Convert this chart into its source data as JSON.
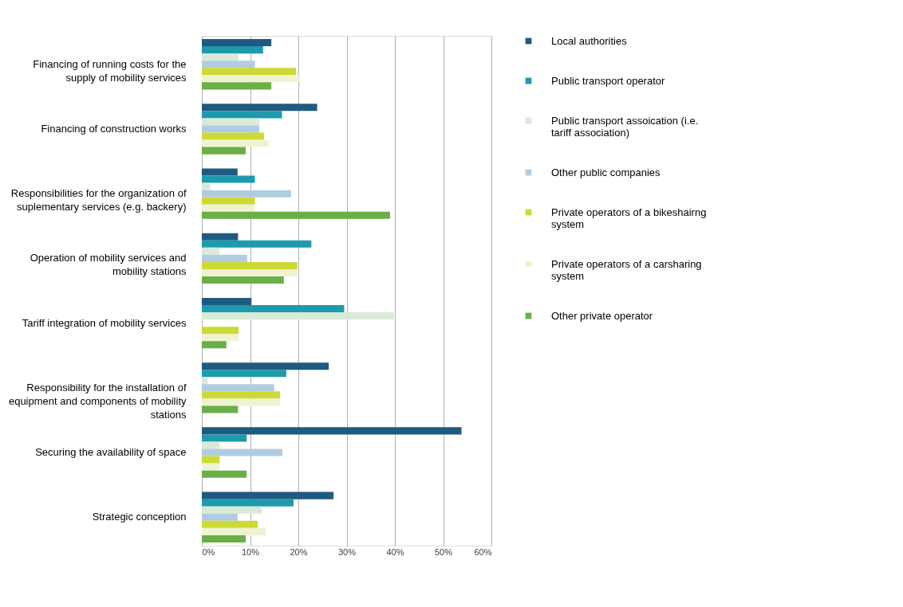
{
  "chart_data": {
    "type": "bar",
    "orientation": "horizontal",
    "categories": [
      "Financing of running costs for the supply of mobility services",
      "Financing of construction works",
      "Responsibilities for the organization of suplementary services (e.g. backery)",
      "Operation of mobility services and mobility stations",
      "Tariff integration of mobility services",
      "Responsibility for the installation of equipment and components of mobility stations",
      "Securing the availability of space",
      "Strategic conception"
    ],
    "series": [
      {
        "name": "Local authorities",
        "color": "#1f5a80",
        "values": [
          14.4,
          23.9,
          7.4,
          7.5,
          10.3,
          26.3,
          53.8,
          27.3
        ]
      },
      {
        "name": "Public transport operator",
        "color": "#1e9aad",
        "values": [
          12.7,
          16.6,
          11.0,
          22.7,
          29.5,
          17.5,
          9.3,
          19.0
        ]
      },
      {
        "name": "Public transport assoication (i.e. tariff association)",
        "color": "#d9ead7",
        "values": [
          7.6,
          11.9,
          1.8,
          3.7,
          39.8,
          1.2,
          3.7,
          12.4
        ]
      },
      {
        "name": "Other public companies",
        "color": "#b0cde0",
        "values": [
          11.0,
          11.9,
          18.5,
          9.4,
          null,
          15.0,
          16.7,
          7.4
        ]
      },
      {
        "name": "Private operators of a bikeshairng system",
        "color": "#cdd935",
        "values": [
          19.5,
          12.9,
          11.0,
          19.8,
          7.6,
          16.2,
          3.7,
          11.6
        ]
      },
      {
        "name": "Private operators of a carsharing system",
        "color": "#f0f3cf",
        "values": [
          20.3,
          13.8,
          11.0,
          19.8,
          7.6,
          16.2,
          3.7,
          13.3
        ]
      },
      {
        "name": "Other private operator",
        "color": "#6aaf47",
        "values": [
          14.4,
          9.1,
          39.0,
          17.0,
          5.1,
          7.5,
          9.3,
          9.1
        ]
      }
    ],
    "xlim": [
      0,
      60
    ],
    "xticks": [
      {
        "value": 0,
        "label": "0%"
      },
      {
        "value": 10,
        "label": "10%"
      },
      {
        "value": 20,
        "label": "20%"
      },
      {
        "value": 30,
        "label": "30%"
      },
      {
        "value": 40,
        "label": "40%"
      },
      {
        "value": 50,
        "label": "50%"
      },
      {
        "value": 60,
        "label": "60%"
      }
    ],
    "grid": "x",
    "legend": "right"
  }
}
